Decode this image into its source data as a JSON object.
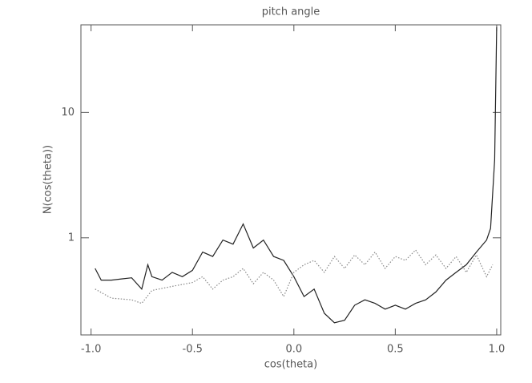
{
  "chart_data": {
    "type": "line",
    "title": "pitch angle",
    "x_label": "cos(theta)",
    "y_label": "N(cos(theta))",
    "ylog": true,
    "xlim": [
      -1.05,
      1.02
    ],
    "ylim": [
      0.168,
      50
    ],
    "xticks": [
      {
        "value": -1,
        "label": "-1.0"
      },
      -0.5,
      {
        "value": 0,
        "label": "0.0"
      },
      0.5,
      {
        "value": 1,
        "label": "1.0"
      }
    ],
    "yticks": [
      1,
      10
    ],
    "series": [
      {
        "color": "#222222",
        "linestyle": "solid",
        "x": [
          -0.98,
          -0.95,
          -0.9,
          -0.85,
          -0.8,
          -0.75,
          -0.72,
          -0.7,
          -0.65,
          -0.6,
          -0.55,
          -0.5,
          -0.45,
          -0.4,
          -0.35,
          -0.3,
          -0.25,
          -0.2,
          -0.15,
          -0.1,
          -0.05,
          0.0,
          0.05,
          0.1,
          0.15,
          0.2,
          0.25,
          0.3,
          0.35,
          0.4,
          0.45,
          0.5,
          0.55,
          0.6,
          0.65,
          0.7,
          0.75,
          0.8,
          0.85,
          0.9,
          0.95,
          0.97,
          0.99,
          1.0
        ],
        "values": [
          0.57,
          0.46,
          0.46,
          0.47,
          0.48,
          0.39,
          0.61,
          0.49,
          0.46,
          0.53,
          0.49,
          0.55,
          0.77,
          0.71,
          0.96,
          0.89,
          1.29,
          0.83,
          0.96,
          0.71,
          0.66,
          0.49,
          0.34,
          0.39,
          0.25,
          0.21,
          0.22,
          0.29,
          0.32,
          0.3,
          0.27,
          0.29,
          0.27,
          0.3,
          0.32,
          0.37,
          0.46,
          0.53,
          0.61,
          0.77,
          0.96,
          1.19,
          4.2,
          48
        ]
      },
      {
        "color": "#888888",
        "linestyle": "dotted",
        "x": [
          -0.98,
          -0.9,
          -0.8,
          -0.75,
          -0.7,
          -0.6,
          -0.5,
          -0.45,
          -0.4,
          -0.35,
          -0.3,
          -0.25,
          -0.2,
          -0.15,
          -0.1,
          -0.05,
          0.0,
          0.05,
          0.1,
          0.15,
          0.2,
          0.25,
          0.3,
          0.35,
          0.4,
          0.45,
          0.5,
          0.55,
          0.6,
          0.65,
          0.7,
          0.75,
          0.8,
          0.85,
          0.9,
          0.95,
          0.98
        ],
        "values": [
          0.39,
          0.33,
          0.32,
          0.3,
          0.38,
          0.41,
          0.44,
          0.49,
          0.39,
          0.46,
          0.49,
          0.57,
          0.43,
          0.53,
          0.46,
          0.34,
          0.53,
          0.61,
          0.66,
          0.53,
          0.71,
          0.57,
          0.73,
          0.61,
          0.77,
          0.57,
          0.71,
          0.66,
          0.8,
          0.61,
          0.73,
          0.57,
          0.71,
          0.53,
          0.73,
          0.49,
          0.61
        ]
      }
    ]
  }
}
